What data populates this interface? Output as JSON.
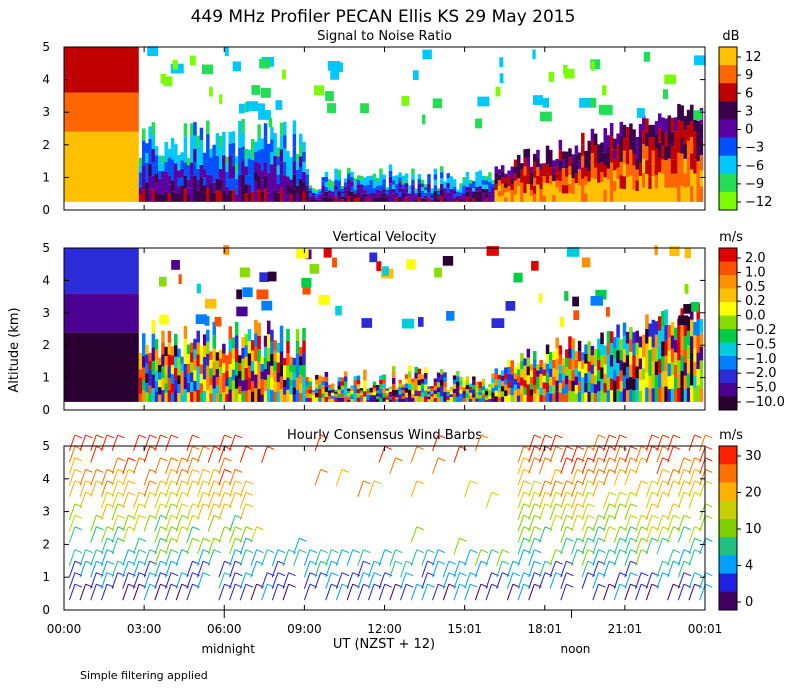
{
  "title": "449 MHz Profiler PECAN Ellis KS 29 May 2015",
  "footnote": "Simple filtering applied",
  "ylabel": "Altitude (km)",
  "xlabel": "UT  (NZST + 12)",
  "day_markers": [
    {
      "label": "midnight",
      "x_hours": 6.0
    },
    {
      "label": "noon",
      "x_hours": 19.0
    }
  ],
  "x_ticks": [
    "00:00",
    "03:00",
    "06:00",
    "09:00",
    "12:00",
    "15:01",
    "18:01",
    "21:01",
    "00:01"
  ],
  "y_ticks": [
    "0",
    "1",
    "2",
    "3",
    "4",
    "5"
  ],
  "colors": {
    "snr": [
      "#7cfc00",
      "#22dd55",
      "#00c8ff",
      "#0050ff",
      "#5a00a0",
      "#3a004a",
      "#c00000",
      "#ff6600",
      "#ffc000"
    ],
    "vv": [
      "#2a0030",
      "#4a0090",
      "#2b2bd8",
      "#0080ff",
      "#00ccdd",
      "#00cc44",
      "#88dd00",
      "#ffff00",
      "#ffc000",
      "#ff9000",
      "#ff5000",
      "#e00000"
    ],
    "wind": [
      "#400060",
      "#2020e0",
      "#00a0ff",
      "#20c080",
      "#80d000",
      "#c8d000",
      "#ffb000",
      "#ff7000",
      "#ff2000"
    ]
  },
  "chart_data": [
    {
      "type": "heatmap",
      "title": "Signal to Noise Ratio",
      "colorbar_unit": "dB",
      "colorbar_ticks": [
        "12",
        "9",
        "6",
        "3",
        "0",
        "−3",
        "−6",
        "−9",
        "−12"
      ],
      "x_range_hours": [
        0,
        24
      ],
      "y_range_km": [
        0,
        5
      ]
    },
    {
      "type": "heatmap",
      "title": "Vertical Velocity",
      "colorbar_unit": "m/s",
      "colorbar_ticks": [
        "2.0",
        "1.0",
        "0.5",
        "0.2",
        "0.0",
        "−0.2",
        "−0.5",
        "−1.0",
        "−2.0",
        "−5.0",
        "−10.0"
      ],
      "x_range_hours": [
        0,
        24
      ],
      "y_range_km": [
        0,
        5
      ]
    },
    {
      "type": "scatter",
      "title": "Hourly Consensus Wind Barbs",
      "colorbar_unit": "m/s",
      "colorbar_ticks": [
        "30",
        "20",
        "10",
        "4",
        "0"
      ],
      "x_range_hours": [
        0,
        24
      ],
      "y_range_km": [
        0,
        5
      ]
    }
  ]
}
